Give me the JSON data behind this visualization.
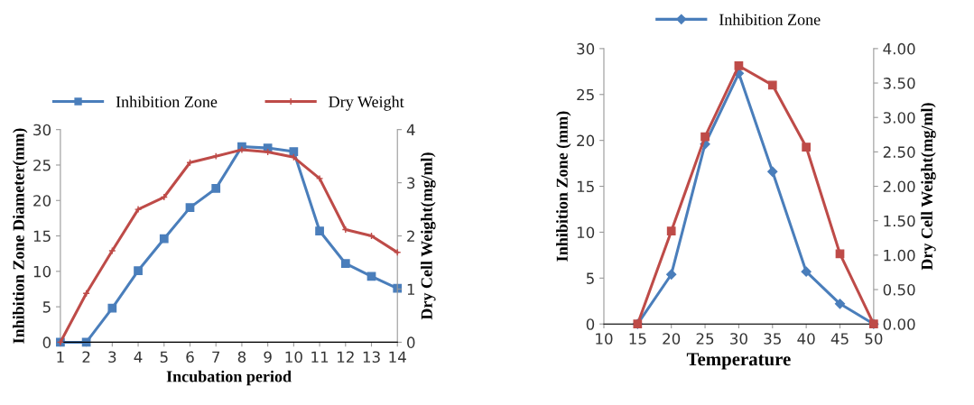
{
  "chart_data": [
    {
      "type": "line",
      "xlabel": "Incubation period",
      "ylabel": "Inhibition Zone Diameter(mm)",
      "y2label": "Dry Cell Weight(mg/ml)",
      "categories": [
        "1",
        "2",
        "3",
        "4",
        "5",
        "6",
        "7",
        "8",
        "9",
        "10",
        "11",
        "12",
        "13",
        "14"
      ],
      "ylim": [
        0,
        30
      ],
      "yticks": [
        0,
        5,
        10,
        15,
        20,
        25,
        30
      ],
      "y2lim": [
        0,
        4
      ],
      "y2ticks": [
        0,
        1,
        2,
        3,
        4
      ],
      "legend": "top",
      "grid": false,
      "series": [
        {
          "name": "Inhibition Zone",
          "color": "#4a7ebb",
          "marker": "square",
          "values": [
            0,
            0,
            4.8,
            10.1,
            14.6,
            19,
            21.7,
            27.6,
            27.4,
            26.9,
            15.7,
            11.1,
            9.3,
            7.6
          ]
        },
        {
          "name": "Dry Weight",
          "color": "#be4b48",
          "marker": "cross",
          "axis": "y2",
          "values": [
            0,
            0.92,
            1.72,
            2.5,
            2.73,
            3.38,
            3.5,
            3.62,
            3.58,
            3.48,
            3.08,
            2.12,
            2.0,
            1.69
          ]
        }
      ]
    },
    {
      "type": "line",
      "xlabel": "Temperature",
      "ylabel": "Inhibition Zone (mm)",
      "y2label": "Dry Cell Weight(mg/ml)",
      "x": [
        15,
        20,
        25,
        30,
        35,
        40,
        45,
        50
      ],
      "xlim": [
        10,
        50
      ],
      "xticks": [
        10,
        15,
        20,
        25,
        30,
        35,
        40,
        45,
        50
      ],
      "ylim": [
        0,
        30
      ],
      "yticks": [
        0,
        5,
        10,
        15,
        20,
        25,
        30
      ],
      "y2lim": [
        0,
        4
      ],
      "y2ticks": [
        {
          "value": 0,
          "label": "0.00"
        },
        {
          "value": 0.5,
          "label": "0.50"
        },
        {
          "value": 1,
          "label": "1.00"
        },
        {
          "value": 1.5,
          "label": "1.50"
        },
        {
          "value": 2,
          "label": "2.00"
        },
        {
          "value": 2.5,
          "label": "2.50"
        },
        {
          "value": 3,
          "label": "3.00"
        },
        {
          "value": 3.5,
          "label": "3.50"
        },
        {
          "value": 4,
          "label": "4.00"
        }
      ],
      "legend": "top",
      "grid": false,
      "series": [
        {
          "name": "Inhibition Zone",
          "color": "#4a7ebb",
          "marker": "diamond",
          "values": [
            0,
            5.4,
            19.6,
            27.3,
            16.6,
            5.7,
            2.2,
            0
          ]
        },
        {
          "color": "#be4b48",
          "marker": "square",
          "axis": "y2",
          "values": [
            0,
            1.35,
            2.72,
            3.75,
            3.47,
            2.57,
            1.02,
            0
          ]
        }
      ]
    }
  ]
}
